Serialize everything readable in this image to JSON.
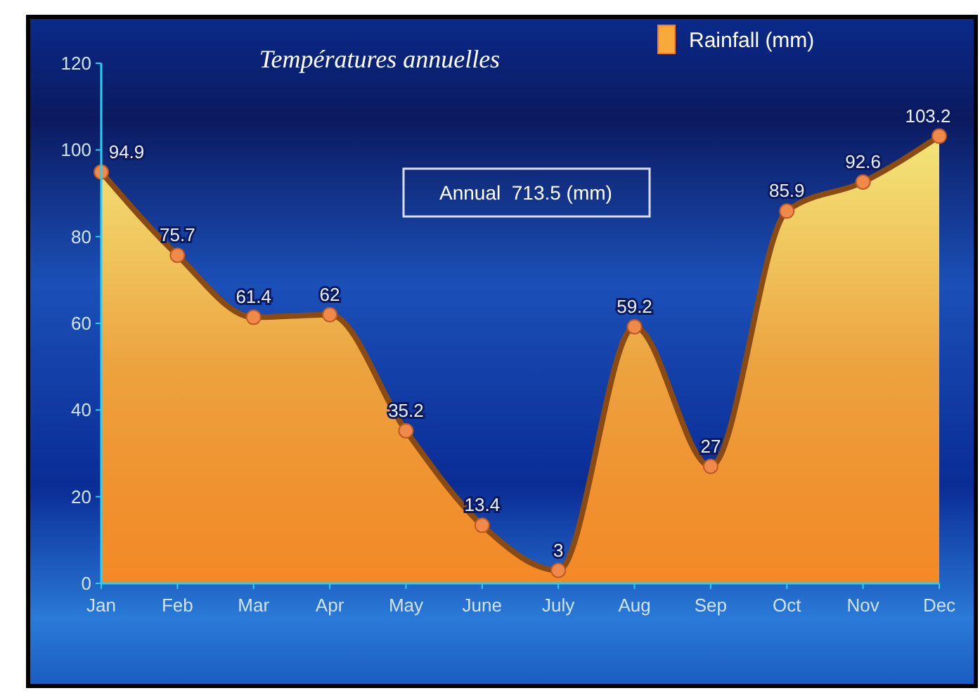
{
  "chart_data": {
    "type": "area",
    "title": "Températures annuelles",
    "categories": [
      "Jan",
      "Feb",
      "Mar",
      "Apr",
      "May",
      "June",
      "July",
      "Aug",
      "Sep",
      "Oct",
      "Nov",
      "Dec"
    ],
    "series": [
      {
        "name": "Rainfall (mm)",
        "color": "#f7a93a",
        "values": [
          94.9,
          75.7,
          61.4,
          62,
          35.2,
          13.4,
          3,
          59.2,
          27,
          85.9,
          92.6,
          103.2
        ]
      }
    ],
    "ylim": [
      0,
      120
    ],
    "yticks": [
      0,
      20,
      40,
      60,
      80,
      100,
      120
    ],
    "grid": false,
    "legend": "top right",
    "data_labels": true,
    "marker": "circle",
    "annotations": [
      "Annual  713.5 (mm)"
    ]
  }
}
